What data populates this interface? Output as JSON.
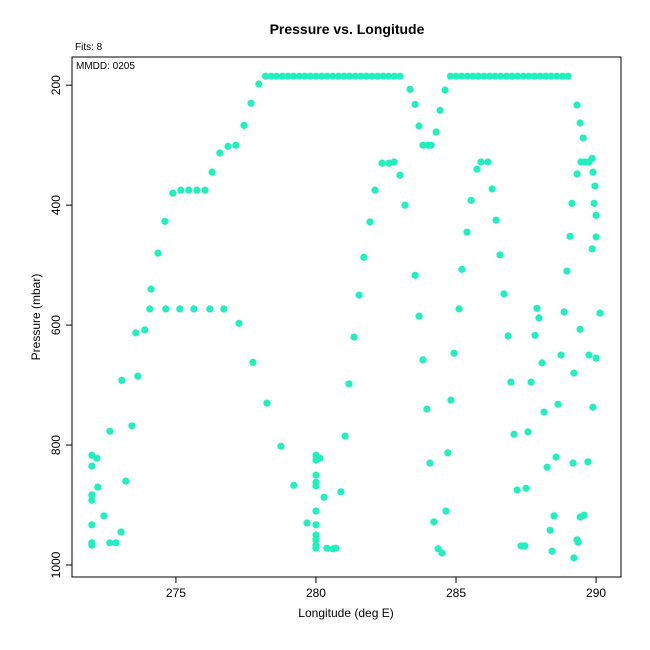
{
  "chart_data": {
    "type": "scatter",
    "title": "Pressure vs. Longitude",
    "subtitle": "Fits: 8",
    "annotation": "MMDD: 0205",
    "x_label": "Longitude (deg E)",
    "y_label": "Pressure (mbar)",
    "color": "#1ff0bd",
    "xlim": [
      271.29,
      290.89
    ],
    "ylim": [
      1020,
      153
    ],
    "xticks": [
      275,
      280,
      285,
      290
    ],
    "yticks": [
      200,
      400,
      600,
      800,
      1000
    ],
    "x": [
      272.0,
      272.0,
      272.18,
      272.0,
      272.0,
      272.43,
      272.0,
      272.0,
      272.0,
      272.64,
      272.86,
      273.04,
      272.21,
      273.21,
      272.64,
      273.07,
      273.43,
      273.57,
      273.64,
      273.89,
      274.11,
      274.36,
      274.61,
      274.89,
      275.18,
      275.46,
      275.75,
      276.04,
      276.29,
      276.57,
      276.86,
      277.14,
      277.43,
      277.68,
      277.96,
      274.07,
      274.64,
      275.14,
      275.64,
      276.21,
      276.71,
      277.25,
      277.75,
      278.25,
      278.75,
      279.21,
      279.68,
      280,
      280,
      280.14,
      280,
      280,
      280,
      280.29,
      280.89,
      280,
      280,
      280,
      280,
      280,
      280,
      280.39,
      280.61,
      280.71,
      281.04,
      281.18,
      281.36,
      281.54,
      281.71,
      281.93,
      282.11,
      282.36,
      282.61,
      282.79,
      283,
      283.18,
      283.36,
      283.54,
      283.68,
      283.82,
      284,
      284.11,
      284.29,
      284.43,
      284.61,
      283.54,
      283.68,
      283.82,
      283.96,
      284.07,
      284.21,
      284.36,
      284.5,
      284.64,
      284.71,
      284.82,
      284.93,
      285.11,
      285.21,
      285.39,
      285.54,
      285.75,
      285.89,
      286.14,
      286.29,
      286.43,
      286.57,
      286.71,
      286.86,
      286.96,
      287.07,
      287.18,
      287.32,
      287.46,
      287.5,
      287.57,
      287.68,
      287.82,
      287.89,
      287.96,
      288.07,
      288.14,
      288.25,
      288.36,
      288.43,
      288.5,
      288.57,
      288.64,
      288.75,
      288.86,
      288.96,
      289.07,
      289.14,
      289.21,
      289.18,
      289.21,
      289.32,
      289.36,
      289.43,
      289.57,
      289.32,
      289.43,
      289.54,
      289.32,
      289.46,
      289.61,
      289.75,
      289.86,
      289.89,
      289.96,
      289.93,
      290,
      290,
      289.86,
      290.14,
      289.43,
      289.75,
      290,
      289.71,
      289.89,
      278.2,
      278.4,
      278.6,
      278.8,
      279,
      279.2,
      279.4,
      279.6,
      279.8,
      280,
      280.2,
      280.4,
      280.6,
      280.8,
      281,
      281.2,
      281.4,
      281.6,
      281.8,
      282,
      282.2,
      282.4,
      282.6,
      282.8,
      283,
      284.8,
      285,
      285.2,
      285.4,
      285.6,
      285.8,
      286,
      286.2,
      286.4,
      286.6,
      286.8,
      287,
      287.2,
      287.4,
      287.6,
      287.8,
      288,
      288.2,
      288.4,
      288.6,
      288.8,
      289
    ],
    "values": [
      817,
      835,
      822,
      883,
      892,
      918,
      933,
      963,
      967,
      963,
      963,
      945,
      870,
      860,
      777,
      692,
      768,
      613,
      685,
      608,
      540,
      480,
      427,
      380,
      375,
      375,
      375,
      375,
      345,
      313,
      302,
      300,
      267,
      230,
      198,
      573,
      573,
      573,
      573,
      573,
      573,
      597,
      662,
      730,
      802,
      867,
      930,
      817,
      825,
      822,
      850,
      862,
      868,
      887,
      878,
      910,
      933,
      950,
      958,
      967,
      972,
      972,
      973,
      972,
      785,
      698,
      620,
      550,
      487,
      428,
      375,
      330,
      330,
      328,
      350,
      400,
      207,
      232,
      268,
      300,
      300,
      300,
      278,
      242,
      208,
      517,
      585,
      658,
      740,
      830,
      928,
      973,
      980,
      910,
      813,
      725,
      647,
      573,
      507,
      445,
      392,
      340,
      328,
      328,
      373,
      425,
      483,
      548,
      618,
      695,
      782,
      875,
      968,
      968,
      872,
      778,
      695,
      617,
      572,
      588,
      663,
      745,
      837,
      942,
      977,
      918,
      820,
      732,
      650,
      578,
      510,
      452,
      397,
      680,
      830,
      988,
      958,
      962,
      920,
      917,
      233,
      263,
      288,
      348,
      328,
      328,
      328,
      322,
      345,
      368,
      397,
      417,
      453,
      473,
      580,
      607,
      650,
      655,
      828,
      737,
      185,
      185,
      185,
      185,
      185,
      185,
      185,
      185,
      185,
      185,
      185,
      185,
      185,
      185,
      185,
      185,
      185,
      185,
      185,
      185,
      185,
      185,
      185,
      185,
      185,
      185,
      185,
      185,
      185,
      185,
      185,
      185,
      185,
      185,
      185,
      185,
      185,
      185,
      185,
      185,
      185,
      185,
      185,
      185,
      185,
      185,
      185
    ]
  }
}
